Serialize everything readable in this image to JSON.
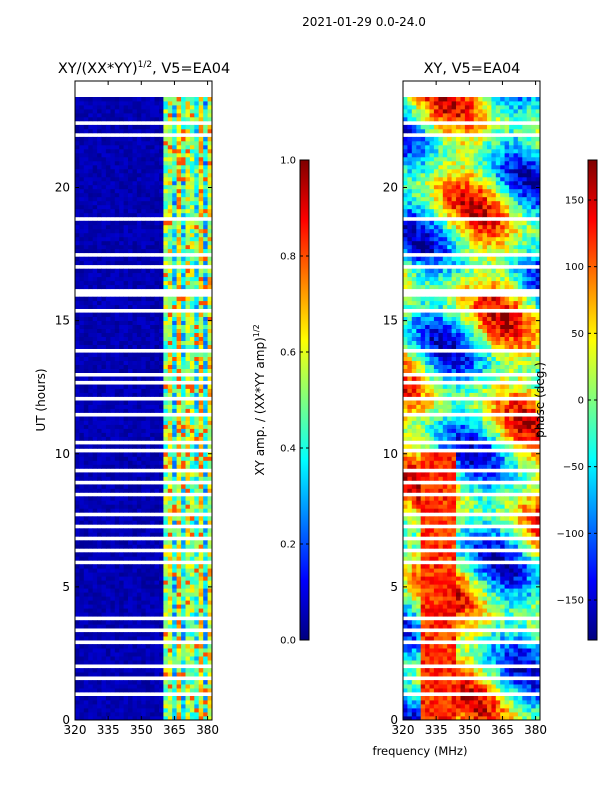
{
  "figure": {
    "suptitle": "2021-01-29 0.0-24.0",
    "shared_xlabel": "frequency (MHz)"
  },
  "chart_data": [
    {
      "type": "heatmap",
      "title_main": "XY/(XX*YY)",
      "title_exp": "1/2",
      "title_suffix": ", V5=EA04",
      "xlabel": "frequency (MHz)",
      "ylabel": "UT (hours)",
      "xlim": [
        320,
        382
      ],
      "ylim": [
        0,
        24
      ],
      "xticks": [
        320,
        335,
        350,
        365,
        380
      ],
      "yticks": [
        0,
        5,
        10,
        15,
        20
      ],
      "quantity": "normalized cross-correlation amplitude",
      "colorbar": {
        "label_main": "XY amp. / (XX*YY amp)",
        "label_exp": "1/2",
        "range": [
          0.0,
          1.0
        ],
        "ticks": [
          "0.0",
          "0.2",
          "0.4",
          "0.6",
          "0.8",
          "1.0"
        ],
        "colormap": "jet"
      },
      "description_bands": [
        {
          "freq_range": [
            320,
            361
          ],
          "typical_value": 0.05
        },
        {
          "freq_range": [
            361,
            382
          ],
          "typical_value": 0.35,
          "peak_value": 0.8
        }
      ]
    },
    {
      "type": "heatmap",
      "title": "XY, V5=EA04",
      "xlabel": "frequency (MHz)",
      "ylabel": "",
      "xlim": [
        320,
        382
      ],
      "ylim": [
        0,
        24
      ],
      "xticks": [
        320,
        335,
        350,
        365,
        380
      ],
      "yticks": [
        0,
        5,
        10,
        15,
        20
      ],
      "quantity": "cross-correlation phase",
      "colorbar": {
        "label": "phase (deg.)",
        "range": [
          -180,
          180
        ],
        "ticks": [
          "150",
          "100",
          "50",
          "0",
          "−50",
          "−100",
          "−150"
        ],
        "tick_values": [
          150,
          100,
          50,
          0,
          -50,
          -100,
          -150
        ],
        "colormap": "jet"
      }
    }
  ],
  "colors": {
    "jet": [
      "#00007f",
      "#0000ff",
      "#007fff",
      "#00ffff",
      "#7fff7f",
      "#ffff00",
      "#ff7f00",
      "#ff0000",
      "#7f0000"
    ],
    "axis": "#000000",
    "background": "#ffffff"
  }
}
